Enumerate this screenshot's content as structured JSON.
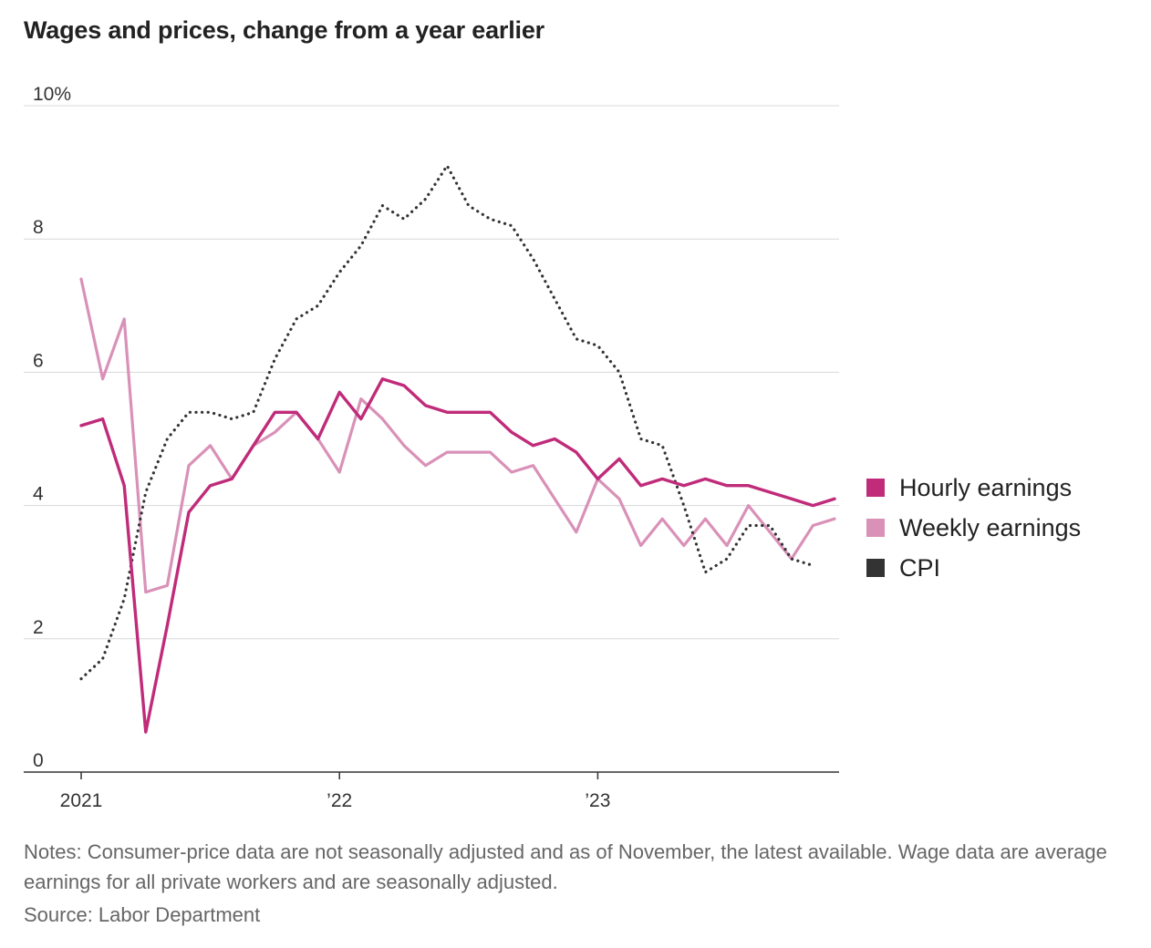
{
  "chart_data": {
    "type": "line",
    "title": "Wages and prices, change from a year earlier",
    "xlabel": "",
    "ylabel": "",
    "ylim": [
      0,
      10
    ],
    "yticks": [
      {
        "value": 0,
        "label": "0"
      },
      {
        "value": 2,
        "label": "2"
      },
      {
        "value": 4,
        "label": "4"
      },
      {
        "value": 6,
        "label": "6"
      },
      {
        "value": 8,
        "label": "8"
      },
      {
        "value": 10,
        "label": "10%"
      }
    ],
    "xticks": [
      {
        "index": 0,
        "label": "2021"
      },
      {
        "index": 12,
        "label": "’22"
      },
      {
        "index": 24,
        "label": "’23"
      }
    ],
    "x": [
      "2021-01",
      "2021-02",
      "2021-03",
      "2021-04",
      "2021-05",
      "2021-06",
      "2021-07",
      "2021-08",
      "2021-09",
      "2021-10",
      "2021-11",
      "2021-12",
      "2022-01",
      "2022-02",
      "2022-03",
      "2022-04",
      "2022-05",
      "2022-06",
      "2022-07",
      "2022-08",
      "2022-09",
      "2022-10",
      "2022-11",
      "2022-12",
      "2023-01",
      "2023-02",
      "2023-03",
      "2023-04",
      "2023-05",
      "2023-06",
      "2023-07",
      "2023-08",
      "2023-09",
      "2023-10",
      "2023-11",
      "2023-12"
    ],
    "series": [
      {
        "name": "Hourly earnings",
        "color": "#c02b7a",
        "style": "solid",
        "values": [
          5.2,
          5.3,
          4.3,
          0.6,
          2.2,
          3.9,
          4.3,
          4.4,
          4.9,
          5.4,
          5.4,
          5.0,
          5.7,
          5.3,
          5.9,
          5.8,
          5.5,
          5.4,
          5.4,
          5.4,
          5.1,
          4.9,
          5.0,
          4.8,
          4.4,
          4.7,
          4.3,
          4.4,
          4.3,
          4.4,
          4.3,
          4.3,
          4.2,
          4.1,
          4.0,
          4.1
        ]
      },
      {
        "name": "Weekly earnings",
        "color": "#d991b8",
        "style": "solid",
        "values": [
          7.4,
          5.9,
          6.8,
          2.7,
          2.8,
          4.6,
          4.9,
          4.4,
          4.9,
          5.1,
          5.4,
          5.0,
          4.5,
          5.6,
          5.3,
          4.9,
          4.6,
          4.8,
          4.8,
          4.8,
          4.5,
          4.6,
          4.1,
          3.6,
          4.4,
          4.1,
          3.4,
          3.8,
          3.4,
          3.8,
          3.4,
          4.0,
          3.6,
          3.2,
          3.7,
          3.8
        ]
      },
      {
        "name": "CPI",
        "color": "#333333",
        "style": "dotted",
        "values": [
          1.4,
          1.7,
          2.6,
          4.2,
          5.0,
          5.4,
          5.4,
          5.3,
          5.4,
          6.2,
          6.8,
          7.0,
          7.5,
          7.9,
          8.5,
          8.3,
          8.6,
          9.1,
          8.5,
          8.3,
          8.2,
          7.7,
          7.1,
          6.5,
          6.4,
          6.0,
          5.0,
          4.9,
          4.0,
          3.0,
          3.2,
          3.7,
          3.7,
          3.2,
          3.1,
          null
        ]
      }
    ],
    "legend_position": "right",
    "grid": true
  },
  "notes": "Notes: Consumer-price data are not seasonally adjusted and as of November, the latest available. Wage data are average earnings for all private workers and are seasonally adjusted.",
  "source": "Source: Labor Department"
}
